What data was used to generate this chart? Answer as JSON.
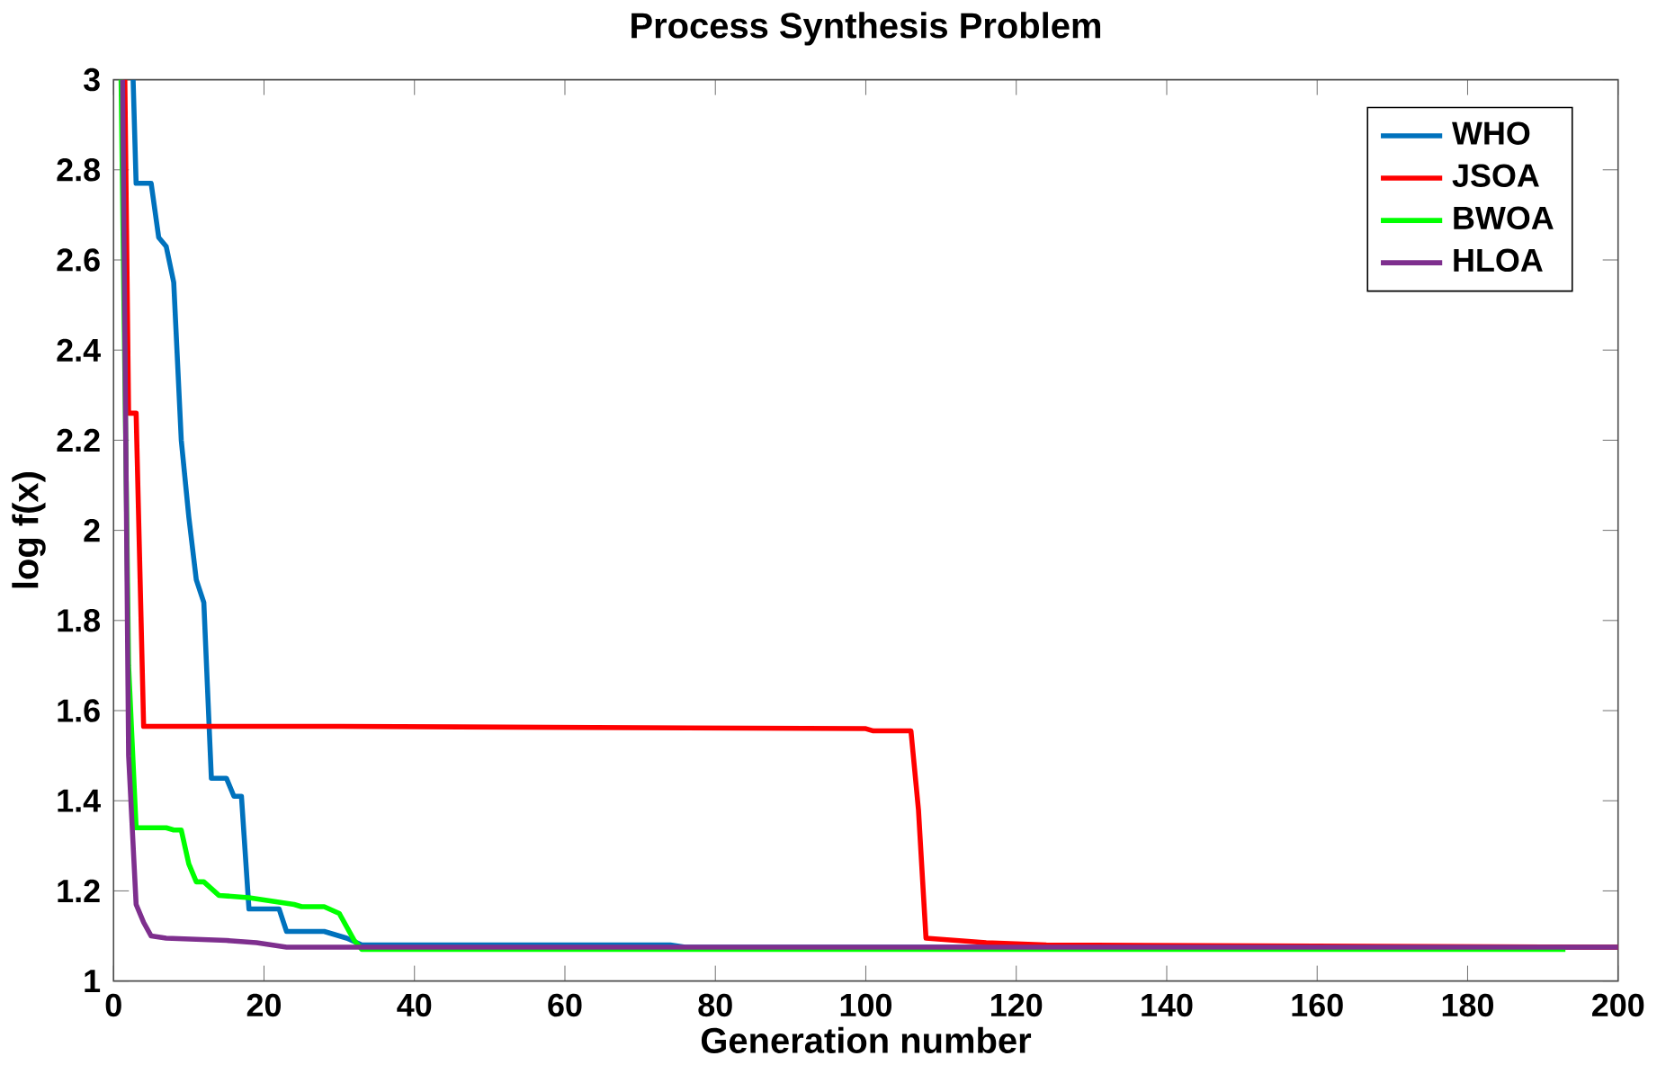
{
  "chart_data": {
    "type": "line",
    "title": "Process Synthesis Problem",
    "xlabel": "Generation number",
    "ylabel": "log f(x)",
    "xlim": [
      0,
      200
    ],
    "ylim": [
      1,
      3
    ],
    "xticks": [
      0,
      20,
      40,
      60,
      80,
      100,
      120,
      140,
      160,
      180,
      200
    ],
    "yticks": [
      1,
      1.2,
      1.4,
      1.6,
      1.8,
      2,
      2.2,
      2.4,
      2.6,
      2.8,
      3
    ],
    "legend": "top right",
    "grid": false,
    "marker": "none",
    "line_style": "solid",
    "series": [
      {
        "name": "WHO",
        "color": "#0072bd",
        "x": [
          2.6,
          3,
          5,
          6,
          7,
          8,
          9,
          10,
          11,
          12,
          13,
          15,
          16,
          17,
          18,
          22,
          23,
          28,
          30,
          31,
          33,
          74,
          76,
          200
        ],
        "values": [
          3,
          2.77,
          2.77,
          2.65,
          2.63,
          2.55,
          2.2,
          2.03,
          1.89,
          1.84,
          1.45,
          1.45,
          1.41,
          1.41,
          1.16,
          1.16,
          1.11,
          1.11,
          1.1,
          1.095,
          1.08,
          1.08,
          1.075,
          1.075
        ]
      },
      {
        "name": "JSOA",
        "color": "#ff0000",
        "x": [
          1.5,
          2,
          3,
          4,
          30,
          100,
          101,
          106,
          107,
          108,
          112,
          116,
          124,
          200
        ],
        "values": [
          3,
          2.26,
          2.26,
          1.565,
          1.565,
          1.56,
          1.555,
          1.555,
          1.38,
          1.095,
          1.09,
          1.085,
          1.08,
          1.075
        ]
      },
      {
        "name": "BWOA",
        "color": "#00ff00",
        "x": [
          1,
          2,
          3,
          7,
          8,
          9,
          10,
          11,
          12,
          14,
          18,
          20,
          22,
          24,
          25,
          28,
          30,
          32,
          33,
          193
        ],
        "values": [
          3,
          1.7,
          1.34,
          1.34,
          1.335,
          1.335,
          1.26,
          1.22,
          1.22,
          1.19,
          1.185,
          1.18,
          1.175,
          1.17,
          1.165,
          1.165,
          1.15,
          1.09,
          1.07,
          1.07
        ]
      },
      {
        "name": "HLOA",
        "color": "#7e2f8e",
        "x": [
          1.2,
          2,
          3,
          4,
          5,
          7,
          15,
          19,
          21,
          23,
          200
        ],
        "values": [
          3,
          1.5,
          1.17,
          1.13,
          1.1,
          1.095,
          1.09,
          1.085,
          1.08,
          1.075,
          1.075
        ]
      }
    ]
  }
}
